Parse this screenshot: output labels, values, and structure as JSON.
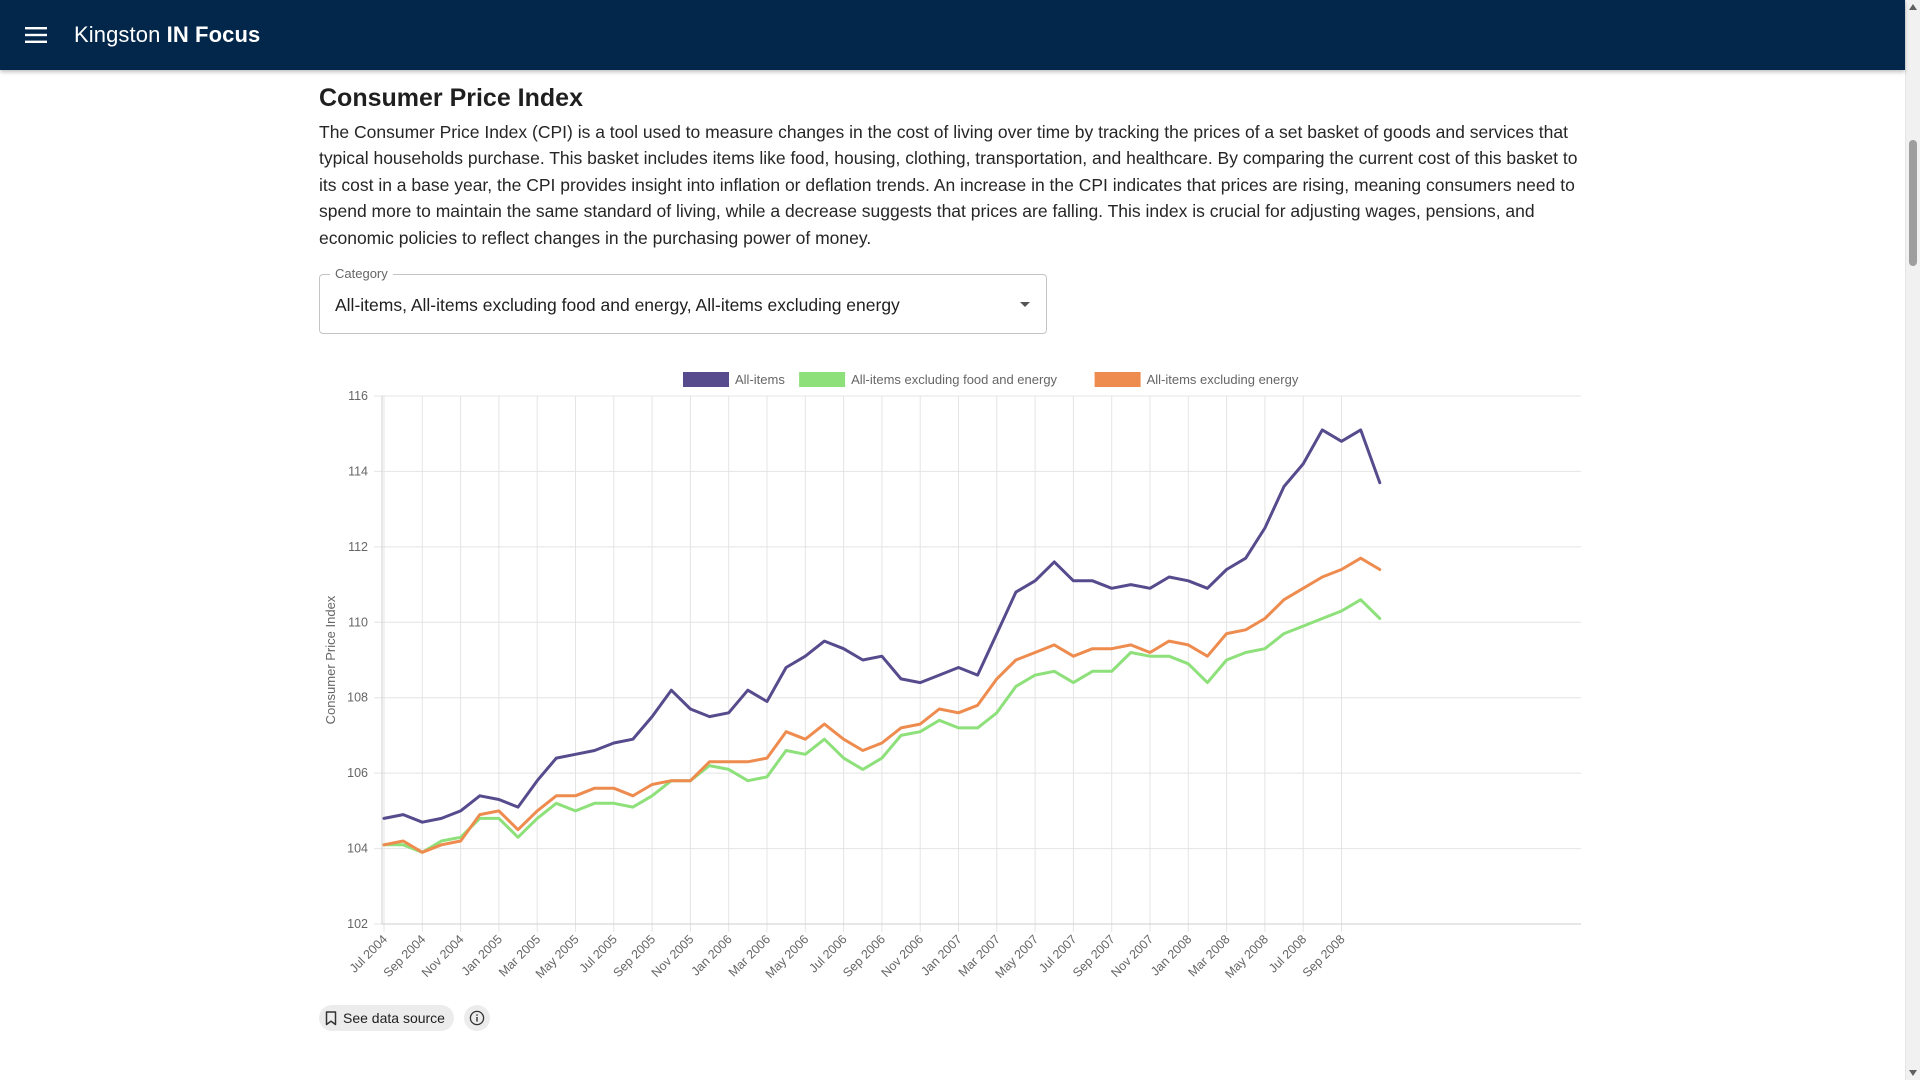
{
  "appbar": {
    "brand_regular": "Kingston",
    "brand_bold": "IN Focus",
    "menu_icon": "hamburger-menu-icon"
  },
  "page": {
    "title": "Consumer Price Index",
    "description": "The Consumer Price Index (CPI) is a tool used to measure changes in the cost of living over time by tracking the prices of a set basket of goods and services that typical households purchase. This basket includes items like food, housing, clothing, transportation, and healthcare. By comparing the current cost of this basket to its cost in a base year, the CPI provides insight into inflation or deflation trends. An increase in the CPI indicates that prices are rising, meaning consumers need to spend more to maintain the same standard of living, while a decrease suggests that prices are falling. This index is crucial for adjusting wages, pensions, and economic policies to reflect changes in the purchasing power of money."
  },
  "category": {
    "label": "Category",
    "value": "All-items, All-items excluding food and energy, All-items excluding energy"
  },
  "footer": {
    "source_label": "See data source",
    "source_icon": "bookmark-icon",
    "info_icon": "info-icon"
  },
  "chart_data": {
    "type": "line",
    "ylabel": "Consumer Price Index",
    "xlabel": "",
    "ylim": [
      102,
      116
    ],
    "yticks": [
      102,
      104,
      106,
      108,
      110,
      112,
      114,
      116
    ],
    "grid": true,
    "legend_position": "top-center",
    "x": [
      "Jul 2004",
      "Aug 2004",
      "Sep 2004",
      "Oct 2004",
      "Nov 2004",
      "Dec 2004",
      "Jan 2005",
      "Feb 2005",
      "Mar 2005",
      "Apr 2005",
      "May 2005",
      "Jun 2005",
      "Jul 2005",
      "Aug 2005",
      "Sep 2005",
      "Oct 2005",
      "Nov 2005",
      "Dec 2005",
      "Jan 2006",
      "Feb 2006",
      "Mar 2006",
      "Apr 2006",
      "May 2006",
      "Jun 2006",
      "Jul 2006",
      "Aug 2006",
      "Sep 2006",
      "Oct 2006",
      "Nov 2006",
      "Dec 2006",
      "Jan 2007",
      "Feb 2007",
      "Mar 2007",
      "Apr 2007",
      "May 2007",
      "Jun 2007",
      "Jul 2007",
      "Aug 2007",
      "Sep 2007",
      "Oct 2007",
      "Nov 2007",
      "Dec 2007",
      "Jan 2008",
      "Feb 2008",
      "Mar 2008",
      "Apr 2008",
      "May 2008",
      "Jun 2008",
      "Jul 2008",
      "Aug 2008",
      "Sep 2008",
      "Oct 2008",
      "Nov 2008"
    ],
    "x_tick_labels": [
      "Jul 2004",
      "Sep 2004",
      "Nov 2004",
      "Jan 2005",
      "Mar 2005",
      "May 2005",
      "Jul 2005",
      "Sep 2005",
      "Nov 2005",
      "Jan 2006",
      "Mar 2006",
      "May 2006",
      "Jul 2006",
      "Sep 2006",
      "Nov 2006",
      "Jan 2007",
      "Mar 2007",
      "May 2007",
      "Jul 2007",
      "Sep 2007",
      "Nov 2007",
      "Jan 2008",
      "Mar 2008",
      "May 2008",
      "Jul 2008",
      "Sep 2008"
    ],
    "series": [
      {
        "name": "All-items",
        "color": "#574b8d",
        "values": [
          104.8,
          104.9,
          104.7,
          104.8,
          105.0,
          105.4,
          105.3,
          105.1,
          105.8,
          106.4,
          106.5,
          106.6,
          106.8,
          106.9,
          107.5,
          108.2,
          107.7,
          107.5,
          107.6,
          108.2,
          107.9,
          108.8,
          109.1,
          109.5,
          109.3,
          109.0,
          109.1,
          108.5,
          108.4,
          108.6,
          108.8,
          108.6,
          109.7,
          110.8,
          111.1,
          111.6,
          111.1,
          111.1,
          110.9,
          111.0,
          110.9,
          111.2,
          111.1,
          110.9,
          111.4,
          111.7,
          112.5,
          113.6,
          114.2,
          115.1,
          114.8,
          115.1,
          113.7
        ]
      },
      {
        "name": "All-items excluding food and energy",
        "color": "#8ee07b",
        "values": [
          104.1,
          104.1,
          103.9,
          104.2,
          104.3,
          104.8,
          104.8,
          104.3,
          104.8,
          105.2,
          105.0,
          105.2,
          105.2,
          105.1,
          105.4,
          105.8,
          105.8,
          106.2,
          106.1,
          105.8,
          105.9,
          106.6,
          106.5,
          106.9,
          106.4,
          106.1,
          106.4,
          107.0,
          107.1,
          107.4,
          107.2,
          107.2,
          107.6,
          108.3,
          108.6,
          108.7,
          108.4,
          108.7,
          108.7,
          109.2,
          109.1,
          109.1,
          108.9,
          108.4,
          109.0,
          109.2,
          109.3,
          109.7,
          109.9,
          110.1,
          110.3,
          110.6,
          110.1
        ]
      },
      {
        "name": "All-items excluding energy",
        "color": "#ee8c4f",
        "values": [
          104.1,
          104.2,
          103.9,
          104.1,
          104.2,
          104.9,
          105.0,
          104.5,
          105.0,
          105.4,
          105.4,
          105.6,
          105.6,
          105.4,
          105.7,
          105.8,
          105.8,
          106.3,
          106.3,
          106.3,
          106.4,
          107.1,
          106.9,
          107.3,
          106.9,
          106.6,
          106.8,
          107.2,
          107.3,
          107.7,
          107.6,
          107.8,
          108.5,
          109.0,
          109.2,
          109.4,
          109.1,
          109.3,
          109.3,
          109.4,
          109.2,
          109.5,
          109.4,
          109.1,
          109.7,
          109.8,
          110.1,
          110.6,
          110.9,
          111.2,
          111.4,
          111.7,
          111.4
        ]
      }
    ]
  }
}
